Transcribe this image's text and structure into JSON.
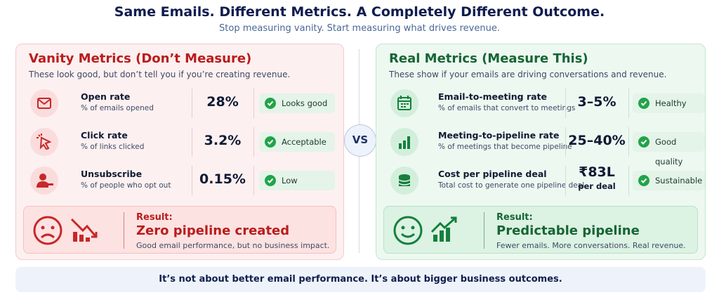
{
  "header": {
    "title": "Same Emails. Different Metrics. A Completely Different Outcome.",
    "subtitle": "Stop measuring vanity. Start measuring what drives revenue."
  },
  "vanity": {
    "title": "Vanity Metrics (Don’t Measure)",
    "subtitle": "These look good, but don’t tell you if you’re creating revenue.",
    "metrics": [
      {
        "name": "Open rate",
        "description": "% of emails opened",
        "value": "28%",
        "status": "Looks good"
      },
      {
        "name": "Click rate",
        "description": "% of links clicked",
        "value": "3.2%",
        "status": "Acceptable"
      },
      {
        "name": "Unsubscribe",
        "description": "% of people who opt out",
        "value": "0.15%",
        "status": "Low"
      }
    ],
    "result": {
      "label": "Result:",
      "headline": "Zero pipeline created",
      "description": "Good email performance, but no business impact."
    }
  },
  "vs": "VS",
  "real": {
    "title": "Real Metrics (Measure This)",
    "subtitle": "These show if your emails are driving conversations and revenue.",
    "metrics": [
      {
        "name": "Email-to-meeting rate",
        "description": "% of emails that convert to meetings",
        "value": "3–5%",
        "status": "Healthy"
      },
      {
        "name": "Meeting-to-pipeline rate",
        "description": "% of meetings that become pipeline",
        "value": "25–40%",
        "status": "Good quality"
      },
      {
        "name": "Cost per pipeline deal",
        "description": "Total cost to generate one pipeline deal",
        "value": "₹83L",
        "value_note": "per deal",
        "status": "Sustainable"
      }
    ],
    "result": {
      "label": "Result:",
      "headline": "Predictable pipeline",
      "description": "Fewer emails. More conversations. Real revenue."
    }
  },
  "footer": "It’s not about better email performance. It’s about bigger business outcomes."
}
